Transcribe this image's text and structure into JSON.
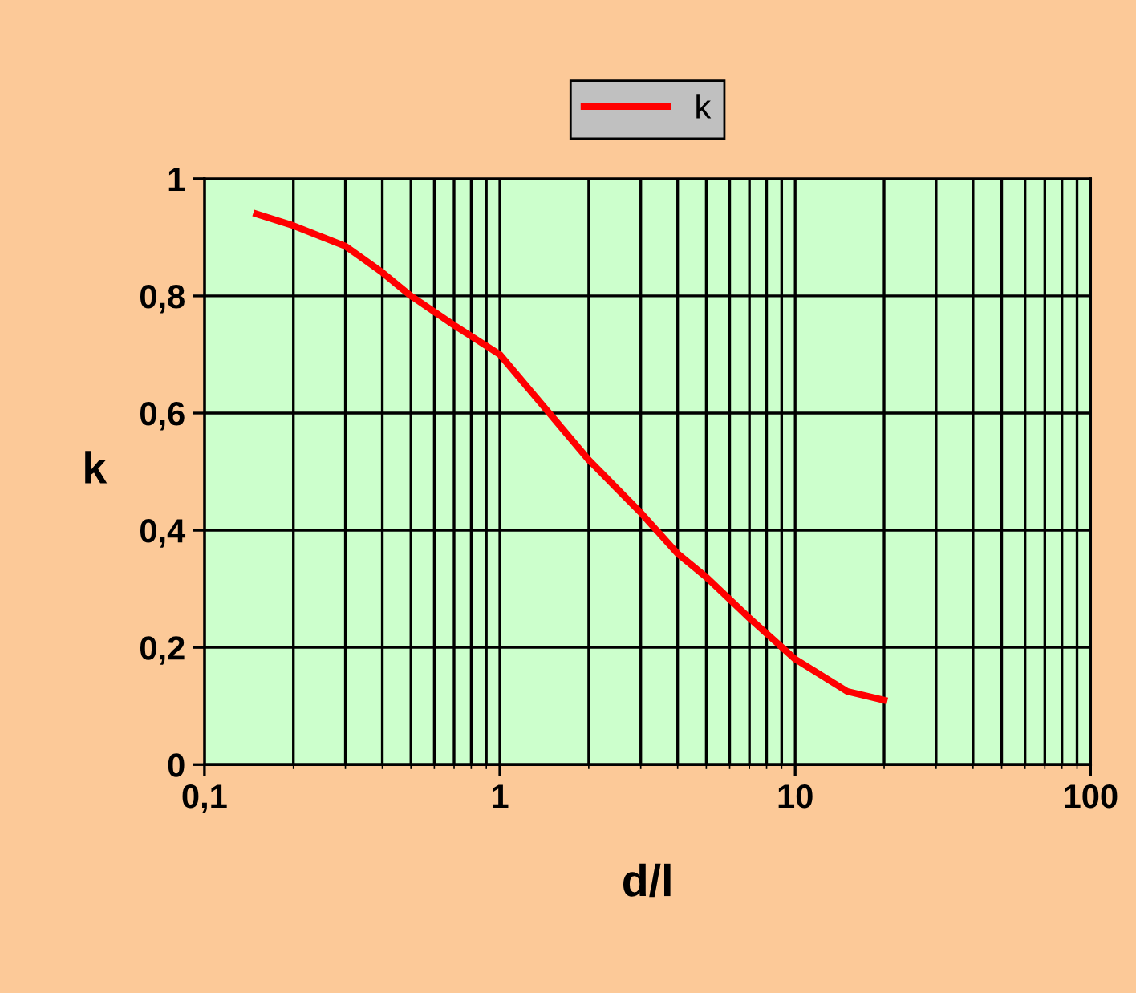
{
  "chart_data": {
    "type": "line",
    "xlabel": "d/l",
    "ylabel": "k",
    "log": "x",
    "xlim": [
      0.1,
      100
    ],
    "xticks": [
      {
        "value": 0.1,
        "label": "0,1"
      },
      1,
      10,
      100
    ],
    "ylim": [
      0,
      1
    ],
    "yticks": [
      0,
      {
        "value": 0.2,
        "label": "0,2"
      },
      {
        "value": 0.4,
        "label": "0,4"
      },
      {
        "value": 0.6,
        "label": "0,6"
      },
      {
        "value": 0.8,
        "label": "0,8"
      },
      1
    ],
    "grid": true,
    "legend": "top",
    "marker": "none",
    "line_style": "solid",
    "series": [
      {
        "name": "k",
        "color": "#ff0000",
        "x": [
          0.15,
          0.2,
          0.3,
          0.4,
          0.5,
          0.7,
          1,
          2,
          3,
          4,
          5,
          7,
          10,
          15,
          20
        ],
        "values": [
          0.94,
          0.92,
          0.885,
          0.84,
          0.8,
          0.75,
          0.7,
          0.52,
          0.43,
          0.36,
          0.32,
          0.25,
          0.18,
          0.125,
          0.11
        ]
      }
    ]
  }
}
